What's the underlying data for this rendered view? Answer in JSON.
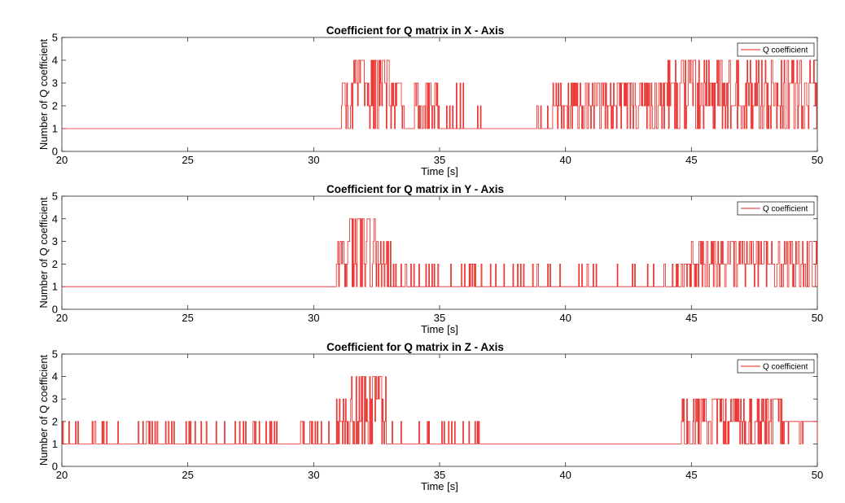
{
  "chart_data": [
    {
      "type": "line",
      "title": "Coefficient for Q matrix in X - Axis",
      "xlabel": "Time [s]",
      "ylabel": "Number of Q coefficient",
      "xlim": [
        20,
        50
      ],
      "ylim": [
        0,
        5
      ],
      "xticks": [
        "20",
        "25",
        "30",
        "35",
        "40",
        "45",
        "50"
      ],
      "yticks": [
        "0",
        "1",
        "2",
        "3",
        "4",
        "5"
      ],
      "legend": {
        "label": "Q coefficient",
        "position": "top-right"
      },
      "color": "#e8231f",
      "series": [
        {
          "name": "Q coefficient",
          "baseline": 1,
          "segments": [
            {
              "x": [
                20,
                31.1
              ],
              "level": 1,
              "max": 1
            },
            {
              "x": [
                31.1,
                31.5
              ],
              "level": 2,
              "max": 3
            },
            {
              "x": [
                31.5,
                33.0
              ],
              "level": 3,
              "max": 4
            },
            {
              "x": [
                33.0,
                33.6
              ],
              "level": 2,
              "max": 3
            },
            {
              "x": [
                33.6,
                34.0
              ],
              "level": 1,
              "max": 1
            },
            {
              "x": [
                34.0,
                35.0
              ],
              "level": 2,
              "max": 3
            },
            {
              "x": [
                35.0,
                36.8
              ],
              "level": 1,
              "max": 3
            },
            {
              "x": [
                36.8,
                38.5
              ],
              "level": 1,
              "max": 1
            },
            {
              "x": [
                38.5,
                39.5
              ],
              "level": 1,
              "max": 2
            },
            {
              "x": [
                39.5,
                44.0
              ],
              "level": 2,
              "max": 3
            },
            {
              "x": [
                44.0,
                50.0
              ],
              "level": 2,
              "max": 4
            }
          ]
        }
      ]
    },
    {
      "type": "line",
      "title": "Coefficient for Q matrix in Y - Axis",
      "xlabel": "Time [s]",
      "ylabel": "Number of Q coefficient",
      "xlim": [
        20,
        50
      ],
      "ylim": [
        0,
        5
      ],
      "xticks": [
        "20",
        "25",
        "30",
        "35",
        "40",
        "45",
        "50"
      ],
      "yticks": [
        "0",
        "1",
        "2",
        "3",
        "4",
        "5"
      ],
      "legend": {
        "label": "Q coefficient",
        "position": "top-right"
      },
      "color": "#e8231f",
      "series": [
        {
          "name": "Q coefficient",
          "baseline": 1,
          "segments": [
            {
              "x": [
                20,
                30.9
              ],
              "level": 1,
              "max": 1
            },
            {
              "x": [
                30.9,
                31.4
              ],
              "level": 2,
              "max": 3
            },
            {
              "x": [
                31.4,
                32.5
              ],
              "level": 3,
              "max": 4
            },
            {
              "x": [
                32.5,
                33.1
              ],
              "level": 2,
              "max": 3
            },
            {
              "x": [
                33.1,
                35.9
              ],
              "level": 1,
              "max": 2
            },
            {
              "x": [
                35.9,
                44.6
              ],
              "level": 1,
              "max": 2
            },
            {
              "x": [
                44.6,
                45.0
              ],
              "level": 2,
              "max": 2
            },
            {
              "x": [
                45.0,
                50.0
              ],
              "level": 2,
              "max": 3
            }
          ]
        }
      ]
    },
    {
      "type": "line",
      "title": "Coefficient for Q matrix in Z - Axis",
      "xlabel": "Time [s]",
      "ylabel": "Number of Q coefficient",
      "xlim": [
        20,
        50
      ],
      "ylim": [
        0,
        5
      ],
      "xticks": [
        "20",
        "25",
        "30",
        "35",
        "40",
        "45",
        "50"
      ],
      "yticks": [
        "0",
        "1",
        "2",
        "3",
        "4",
        "5"
      ],
      "legend": {
        "label": "Q coefficient",
        "position": "top-right"
      },
      "color": "#e8231f",
      "series": [
        {
          "name": "Q coefficient",
          "baseline": 1,
          "segments": [
            {
              "x": [
                20,
                30.9
              ],
              "level": 1,
              "max": 2
            },
            {
              "x": [
                30.9,
                31.5
              ],
              "level": 2,
              "max": 3
            },
            {
              "x": [
                31.5,
                32.9
              ],
              "level": 2,
              "max": 4
            },
            {
              "x": [
                32.9,
                33.4
              ],
              "level": 1,
              "max": 2
            },
            {
              "x": [
                33.4,
                36.7
              ],
              "level": 1,
              "max": 2
            },
            {
              "x": [
                36.7,
                44.6
              ],
              "level": 1,
              "max": 1
            },
            {
              "x": [
                44.6,
                46.2
              ],
              "level": 2,
              "max": 3
            },
            {
              "x": [
                46.2,
                48.6
              ],
              "level": 2,
              "max": 3
            },
            {
              "x": [
                48.6,
                50.0
              ],
              "level": 2,
              "max": 2
            }
          ]
        }
      ]
    }
  ]
}
